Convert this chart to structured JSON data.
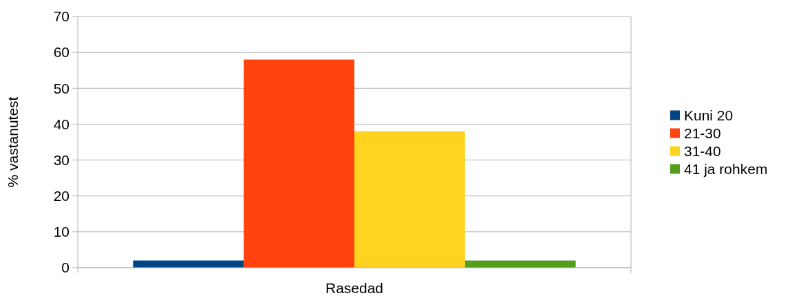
{
  "chart_data": {
    "type": "bar",
    "ylabel": "% vastanutest",
    "categories": [
      "Rasedad"
    ],
    "series": [
      {
        "name": "Kuni 20",
        "color": "#004586",
        "values": [
          2
        ]
      },
      {
        "name": "21-30",
        "color": "#ff420e",
        "values": [
          58
        ]
      },
      {
        "name": "31-40",
        "color": "#ffd320",
        "values": [
          38
        ]
      },
      {
        "name": "41 ja rohkem",
        "color": "#579d1c",
        "values": [
          2
        ]
      }
    ],
    "ylim": [
      0,
      70
    ],
    "yticks": [
      0,
      10,
      20,
      30,
      40,
      50,
      60,
      70
    ],
    "grid": "y",
    "legend": "right"
  }
}
